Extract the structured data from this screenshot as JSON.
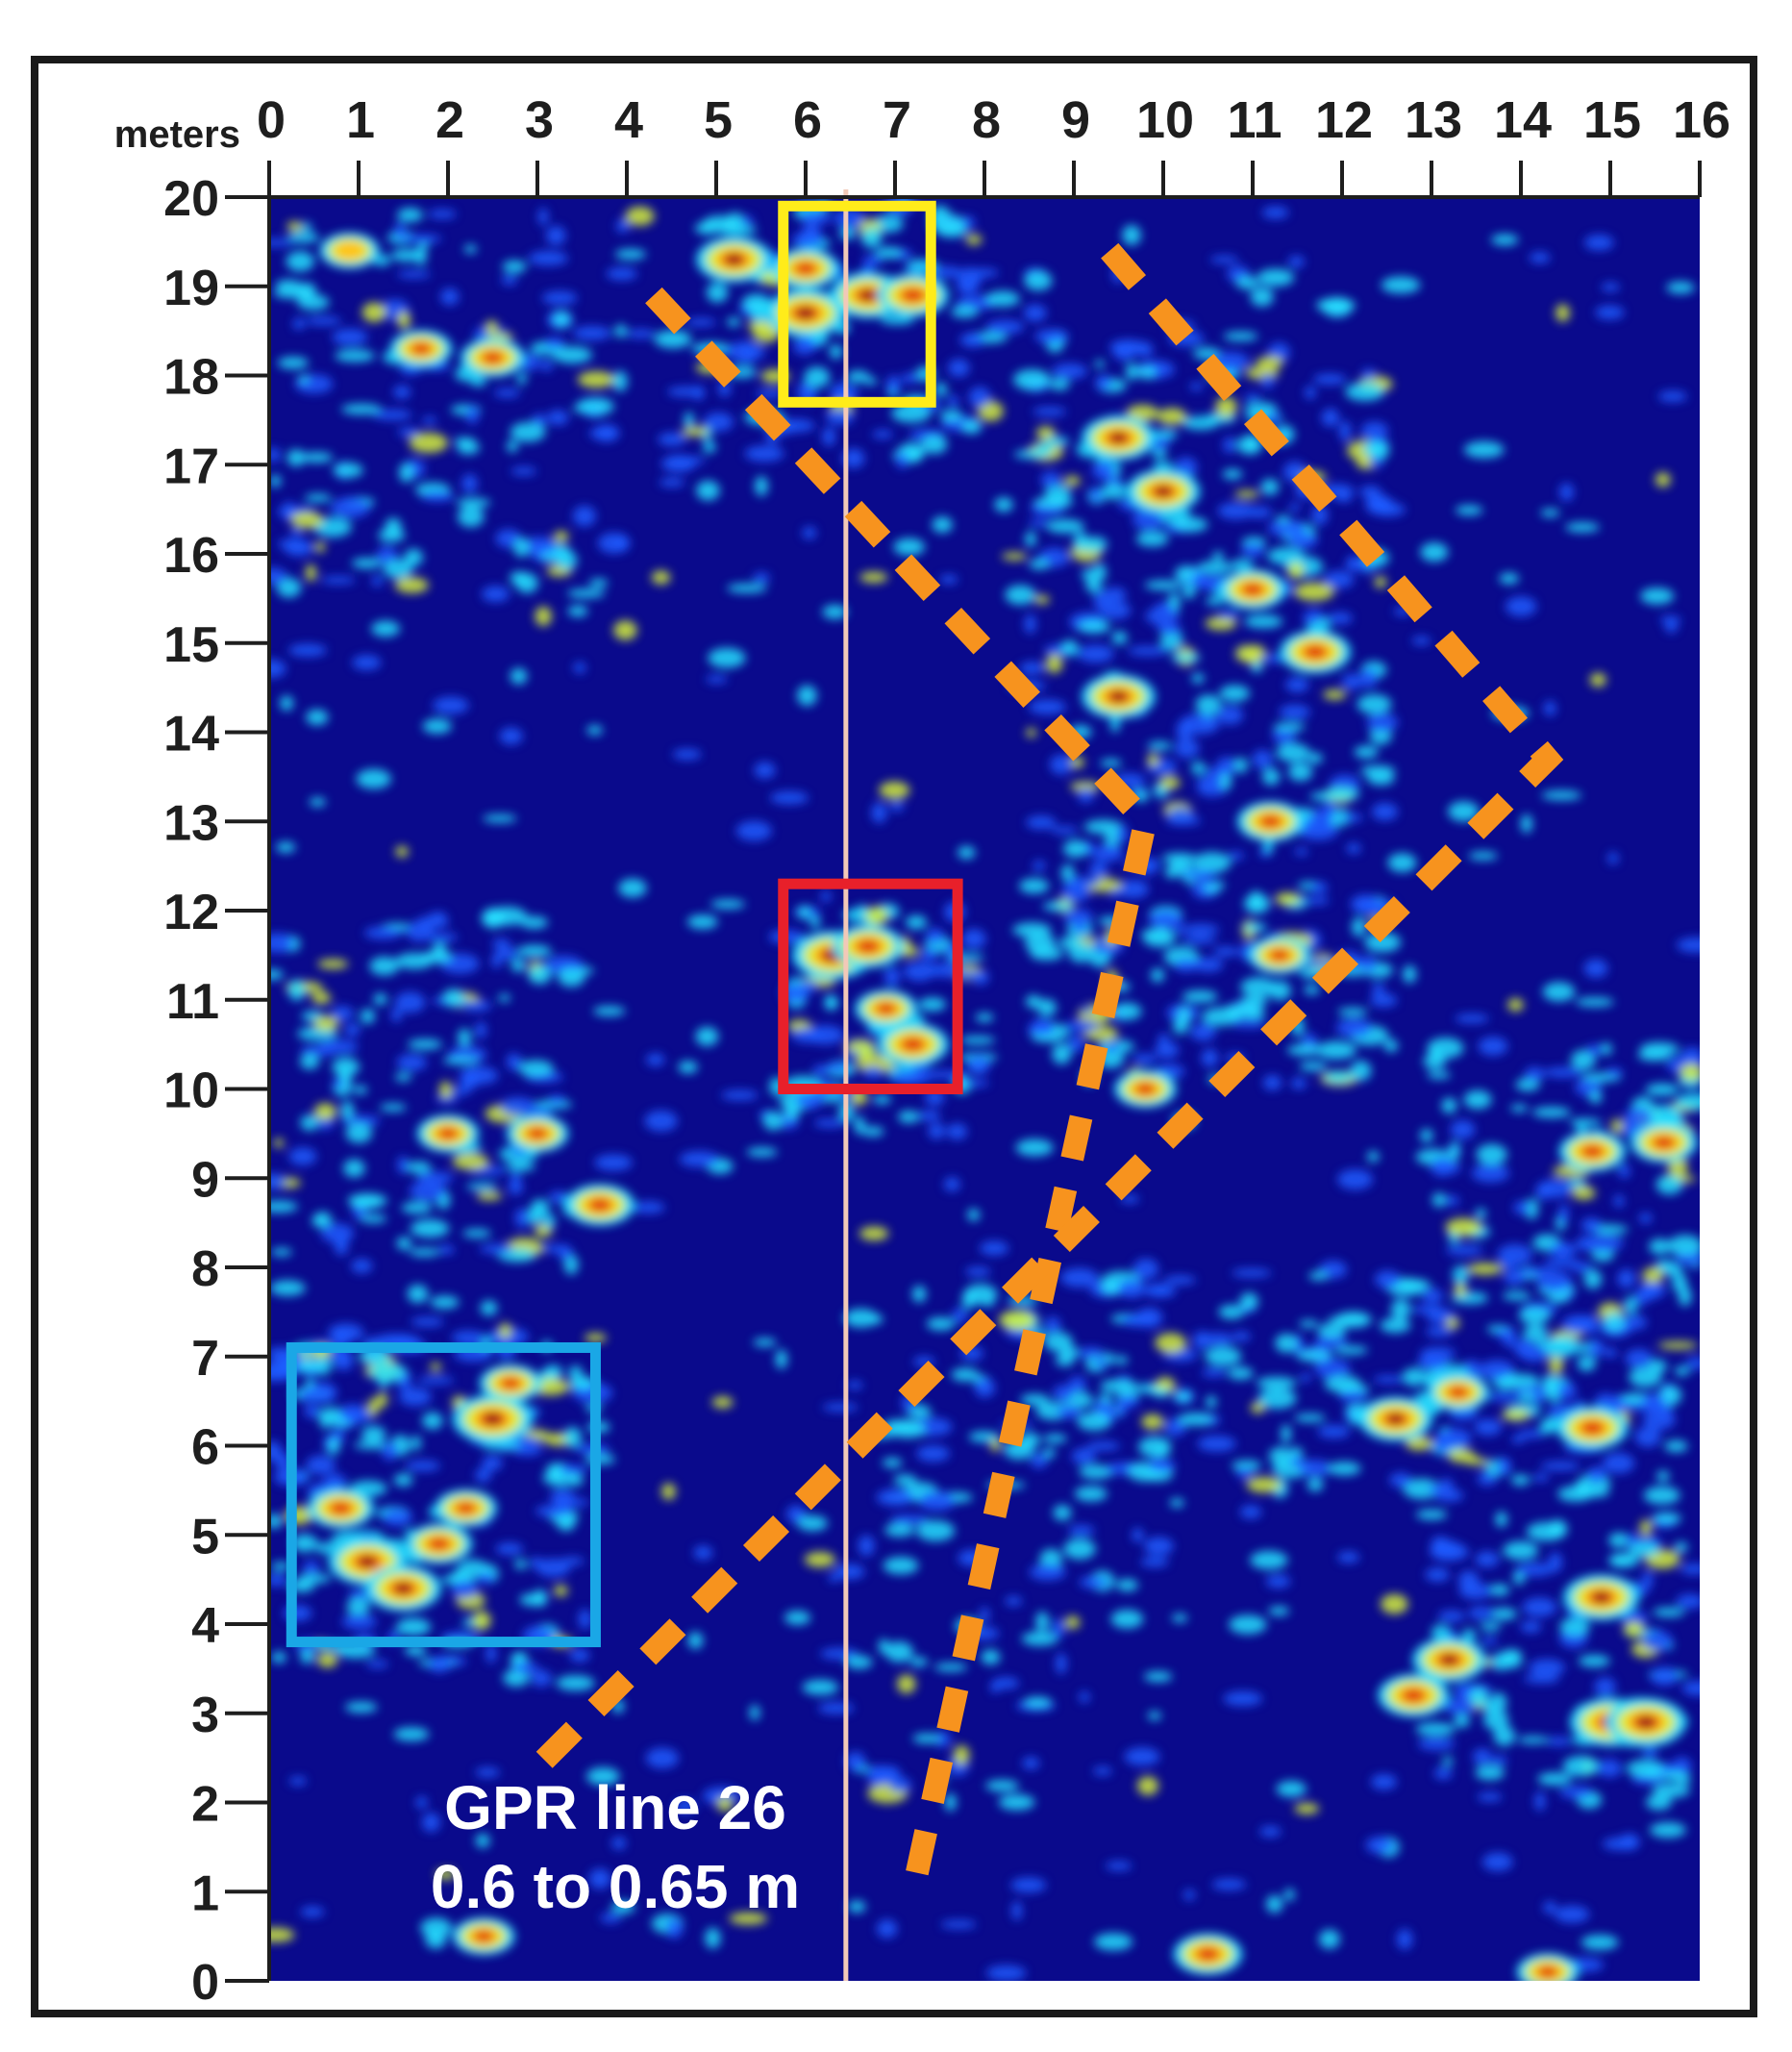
{
  "chart_data": {
    "type": "heatmap",
    "title": "",
    "xlabel": "meters",
    "ylabel": "",
    "xlim": [
      0,
      16
    ],
    "ylim": [
      0,
      20
    ],
    "x_ticks": [
      "0",
      "1",
      "2",
      "3",
      "4",
      "5",
      "6",
      "7",
      "8",
      "9",
      "10",
      "11",
      "12",
      "13",
      "14",
      "15",
      "16"
    ],
    "y_ticks": [
      "0",
      "1",
      "2",
      "3",
      "4",
      "5",
      "6",
      "7",
      "8",
      "9",
      "10",
      "11",
      "12",
      "13",
      "14",
      "15",
      "16",
      "17",
      "18",
      "19",
      "20"
    ],
    "caption_lines": [
      "GPR line 26",
      "0.6 to 0.65 m"
    ],
    "colors": {
      "background": "#0a0a8c",
      "colormap": [
        "#0a0a8c",
        "#1d5cff",
        "#27e0ff",
        "#d8f23a",
        "#ffc21e",
        "#e03a10",
        "#8c0a14"
      ],
      "profile_line": "#f2c9b8",
      "dashed_lines": "#f7931e",
      "box_yellow": "#ffec1a",
      "box_red": "#e8202a",
      "box_blue": "#1aa7e6"
    },
    "profile_line_x": 6.45,
    "annotations": [
      {
        "kind": "rectangle",
        "color": "yellow",
        "x": [
          5.75,
          7.4
        ],
        "y": [
          17.7,
          19.9
        ]
      },
      {
        "kind": "rectangle",
        "color": "red",
        "x": [
          5.75,
          7.7
        ],
        "y": [
          10.0,
          12.3
        ]
      },
      {
        "kind": "rectangle",
        "color": "blue",
        "x": [
          0.25,
          3.65
        ],
        "y": [
          3.8,
          7.1
        ]
      },
      {
        "kind": "dashed-polyline",
        "color": "orange",
        "points": [
          [
            4.3,
            18.9
          ],
          [
            9.8,
            13.0
          ],
          [
            7.2,
            1.0
          ]
        ]
      },
      {
        "kind": "dashed-polyline",
        "color": "orange",
        "points": [
          [
            9.4,
            19.4
          ],
          [
            14.3,
            13.7
          ],
          [
            2.9,
            2.3
          ]
        ]
      }
    ],
    "hotspots": [
      {
        "x": 6.0,
        "y": 18.7,
        "v": 1.0
      },
      {
        "x": 6.7,
        "y": 18.9,
        "v": 0.9
      },
      {
        "x": 5.2,
        "y": 19.3,
        "v": 0.9
      },
      {
        "x": 7.2,
        "y": 18.9,
        "v": 0.8
      },
      {
        "x": 6.0,
        "y": 19.2,
        "v": 0.7
      },
      {
        "x": 6.3,
        "y": 11.5,
        "v": 1.0
      },
      {
        "x": 6.7,
        "y": 11.6,
        "v": 0.8
      },
      {
        "x": 7.2,
        "y": 10.5,
        "v": 0.8
      },
      {
        "x": 6.9,
        "y": 10.9,
        "v": 0.6
      },
      {
        "x": 2.5,
        "y": 6.3,
        "v": 1.0
      },
      {
        "x": 1.1,
        "y": 4.7,
        "v": 0.95
      },
      {
        "x": 1.5,
        "y": 4.4,
        "v": 0.9
      },
      {
        "x": 1.9,
        "y": 4.9,
        "v": 0.7
      },
      {
        "x": 0.8,
        "y": 5.3,
        "v": 0.7
      },
      {
        "x": 2.2,
        "y": 5.3,
        "v": 0.6
      },
      {
        "x": 2.7,
        "y": 6.7,
        "v": 0.6
      },
      {
        "x": 9.5,
        "y": 17.3,
        "v": 0.85
      },
      {
        "x": 10.0,
        "y": 16.7,
        "v": 0.85
      },
      {
        "x": 9.5,
        "y": 14.4,
        "v": 0.85
      },
      {
        "x": 11.7,
        "y": 14.9,
        "v": 0.8
      },
      {
        "x": 11.0,
        "y": 15.6,
        "v": 0.7
      },
      {
        "x": 11.2,
        "y": 13.0,
        "v": 0.7
      },
      {
        "x": 11.3,
        "y": 11.5,
        "v": 0.6
      },
      {
        "x": 9.8,
        "y": 10.0,
        "v": 0.6
      },
      {
        "x": 12.6,
        "y": 6.3,
        "v": 0.85
      },
      {
        "x": 14.8,
        "y": 6.2,
        "v": 0.8
      },
      {
        "x": 13.3,
        "y": 6.6,
        "v": 0.6
      },
      {
        "x": 14.8,
        "y": 9.3,
        "v": 0.7
      },
      {
        "x": 15.6,
        "y": 9.4,
        "v": 0.7
      },
      {
        "x": 15.0,
        "y": 2.9,
        "v": 1.0
      },
      {
        "x": 15.4,
        "y": 2.9,
        "v": 1.0
      },
      {
        "x": 14.9,
        "y": 4.3,
        "v": 0.9
      },
      {
        "x": 12.8,
        "y": 3.2,
        "v": 0.8
      },
      {
        "x": 13.2,
        "y": 3.6,
        "v": 0.85
      },
      {
        "x": 3.7,
        "y": 8.7,
        "v": 0.75
      },
      {
        "x": 2.0,
        "y": 9.5,
        "v": 0.6
      },
      {
        "x": 3.0,
        "y": 9.5,
        "v": 0.6
      },
      {
        "x": 1.7,
        "y": 18.3,
        "v": 0.6
      },
      {
        "x": 2.5,
        "y": 18.2,
        "v": 0.65
      },
      {
        "x": 0.9,
        "y": 19.4,
        "v": 0.55
      },
      {
        "x": 10.5,
        "y": 0.3,
        "v": 0.75
      },
      {
        "x": 2.4,
        "y": 0.5,
        "v": 0.6
      },
      {
        "x": 14.3,
        "y": 0.1,
        "v": 0.6
      }
    ]
  }
}
